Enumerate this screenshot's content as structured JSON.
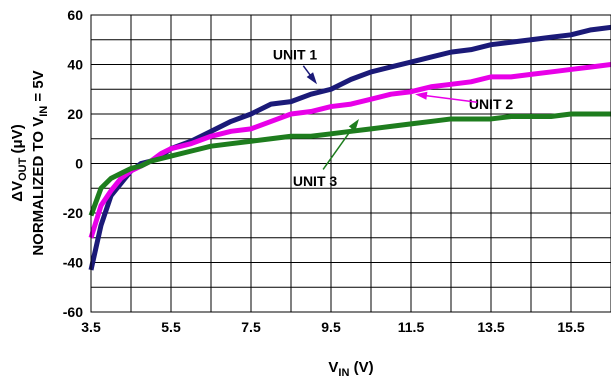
{
  "chart_data": {
    "type": "line",
    "xlim": [
      3.5,
      16.5
    ],
    "ylim": [
      -60,
      60
    ],
    "x_ticks": [
      "3.5",
      "5.5",
      "7.5",
      "9.5",
      "11.5",
      "13.5",
      "15.5"
    ],
    "y_ticks": [
      "60",
      "40",
      "20",
      "0",
      "-20",
      "-40",
      "-60"
    ],
    "x_tick_values": [
      3.5,
      5.5,
      7.5,
      9.5,
      11.5,
      13.5,
      15.5
    ],
    "y_tick_values": [
      60,
      40,
      20,
      0,
      -20,
      -40,
      -60
    ],
    "grid": true,
    "xlabel": {
      "main": "V",
      "sub": "IN",
      "tail": " (V)"
    },
    "ylabel": {
      "line1": {
        "delta": "ΔV",
        "sub": "OUT",
        "tail": " (μV)"
      },
      "line2": {
        "main": "NORMALIZED TO V",
        "sub": "IN",
        "tail": " = 5V"
      }
    },
    "series": [
      {
        "name": "UNIT 1",
        "color": "#1b1a78",
        "x": [
          3.5,
          3.75,
          4.0,
          4.25,
          4.5,
          4.75,
          5.0,
          5.25,
          5.5,
          6.0,
          6.5,
          7.0,
          7.5,
          8.0,
          8.5,
          9.0,
          9.5,
          10.0,
          10.5,
          11.0,
          11.5,
          12.0,
          12.5,
          13.0,
          13.5,
          14.0,
          14.5,
          15.0,
          15.5,
          16.0,
          16.5
        ],
        "y": [
          -43,
          -25,
          -13,
          -8,
          -3,
          0,
          1,
          3,
          6,
          9,
          13,
          17,
          20,
          24,
          25,
          28,
          30,
          34,
          37,
          39,
          41,
          43,
          45,
          46,
          48,
          49,
          50,
          51,
          52,
          54,
          55
        ]
      },
      {
        "name": "UNIT 2",
        "color": "#e800e8",
        "x": [
          3.5,
          3.75,
          4.0,
          4.25,
          4.5,
          4.75,
          5.0,
          5.25,
          5.5,
          6.0,
          6.5,
          7.0,
          7.5,
          8.0,
          8.5,
          9.0,
          9.5,
          10.0,
          10.5,
          11.0,
          11.5,
          12.0,
          12.5,
          13.0,
          13.5,
          14.0,
          14.5,
          15.0,
          15.5,
          16.0,
          16.5
        ],
        "y": [
          -30,
          -17,
          -11,
          -6,
          -3,
          -1,
          1,
          4,
          6,
          8,
          11,
          13,
          14,
          17,
          20,
          21,
          23,
          24,
          26,
          28,
          29,
          31,
          32,
          33,
          35,
          35,
          36,
          37,
          38,
          39,
          40
        ]
      },
      {
        "name": "UNIT 3",
        "color": "#1e7d1e",
        "x": [
          3.5,
          3.75,
          4.0,
          4.25,
          4.5,
          4.75,
          5.0,
          5.25,
          5.5,
          6.0,
          6.5,
          7.0,
          7.5,
          8.0,
          8.5,
          9.0,
          9.5,
          10.0,
          10.5,
          11.0,
          11.5,
          12.0,
          12.5,
          13.0,
          13.5,
          14.0,
          14.5,
          15.0,
          15.5,
          16.0,
          16.5
        ],
        "y": [
          -21,
          -10,
          -6,
          -4,
          -2,
          -1,
          1,
          2,
          3,
          5,
          7,
          8,
          9,
          10,
          11,
          11,
          12,
          13,
          14,
          15,
          16,
          17,
          18,
          18,
          18,
          19,
          19,
          19,
          20,
          20,
          20
        ]
      }
    ],
    "annotations": [
      {
        "text": "UNIT 1",
        "x": 8.6,
        "y": 44,
        "arrow_to": [
          9.15,
          32
        ]
      },
      {
        "text": "UNIT 2",
        "x": 13.5,
        "y": 24,
        "arrow_to": [
          11.6,
          28
        ]
      },
      {
        "text": "UNIT 3",
        "x": 9.1,
        "y": -7,
        "arrow_to": [
          10.2,
          18
        ]
      }
    ]
  }
}
